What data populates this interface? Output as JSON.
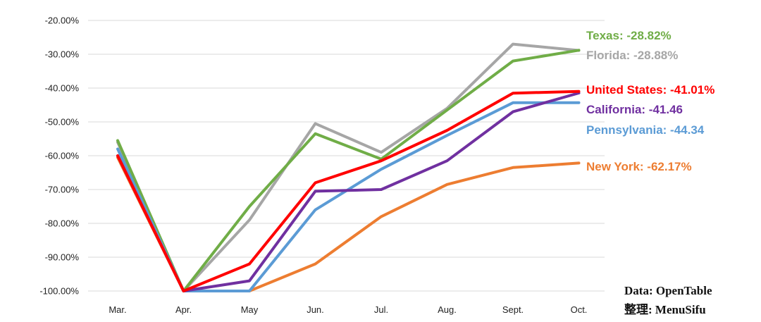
{
  "chart_data": {
    "type": "line",
    "categories": [
      "Mar.",
      "Apr.",
      "May",
      "Jun.",
      "Jul.",
      "Aug.",
      "Sept.",
      "Oct."
    ],
    "ylim": [
      -100,
      -20
    ],
    "yticks": [
      "-20.00%",
      "-30.00%",
      "-40.00%",
      "-50.00%",
      "-60.00%",
      "-70.00%",
      "-80.00%",
      "-90.00%",
      "-100.00%"
    ],
    "grid": true,
    "series": [
      {
        "name": "Florida",
        "label": "Florida: -28.88%",
        "color": "#a6a6a6",
        "values": [
          -56,
          -100,
          -79,
          -50.5,
          -59,
          -46,
          -27,
          -28.88
        ]
      },
      {
        "name": "Texas",
        "label": "Texas: -28.82%",
        "color": "#70ad47",
        "values": [
          -55.5,
          -100,
          -75,
          -53.5,
          -61,
          -46.5,
          -32,
          -28.82
        ]
      },
      {
        "name": "New York",
        "label": "New York: -62.17%",
        "color": "#ed7d31",
        "values": [
          -60.5,
          -100,
          -100,
          -92,
          -78,
          -68.5,
          -63.5,
          -62.17
        ]
      },
      {
        "name": "Pennsylvania",
        "label": "Pennsylvania: -44.34",
        "color": "#5b9bd5",
        "values": [
          -58,
          -100,
          -100,
          -76,
          -64,
          -54,
          -44.34,
          -44.34
        ]
      },
      {
        "name": "California",
        "label": "California: -41.46",
        "color": "#7030a0",
        "values": [
          -60,
          -100,
          -97,
          -70.5,
          -70,
          -61.5,
          -47,
          -41.46
        ]
      },
      {
        "name": "United States",
        "label": "United States: -41.01%",
        "color": "#ff0000",
        "values": [
          -60,
          -100,
          -92,
          -68,
          -61.5,
          -52.5,
          -41.5,
          -41.01
        ]
      }
    ]
  },
  "source": {
    "line1": "Data: OpenTable",
    "line2": "整理: MenuSifu"
  }
}
